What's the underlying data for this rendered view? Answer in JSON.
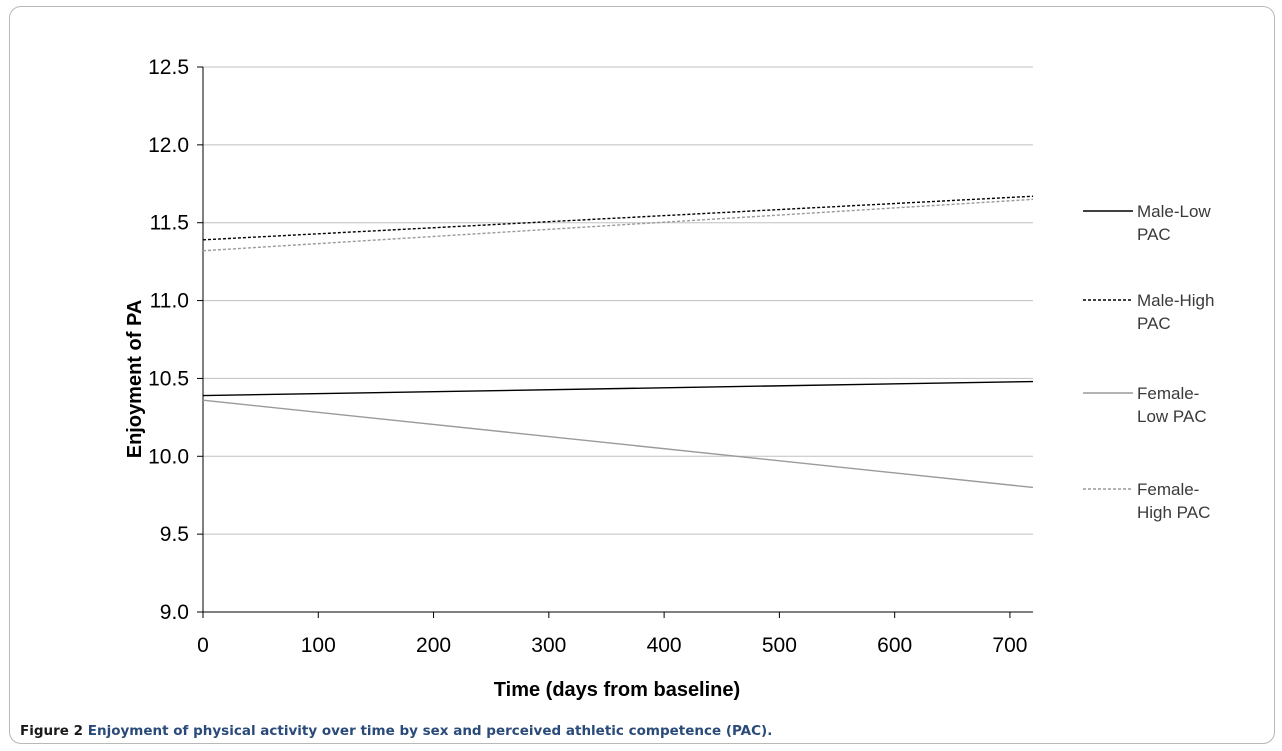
{
  "caption": {
    "number": "Figure 2",
    "text": "Enjoyment of physical activity over time by sex and perceived athletic competence (PAC)."
  },
  "chart_data": {
    "type": "line",
    "title": "",
    "xlabel": "Time (days from baseline)",
    "ylabel": "Enjoyment of PA",
    "xlim": [
      0,
      720
    ],
    "ylim": [
      9.0,
      12.5
    ],
    "xticks": [
      0,
      100,
      200,
      300,
      400,
      500,
      600,
      700
    ],
    "yticks": [
      9.0,
      9.5,
      10.0,
      10.5,
      11.0,
      11.5,
      12.0,
      12.5
    ],
    "xtick_labels": [
      "0",
      "100",
      "200",
      "300",
      "400",
      "500",
      "600",
      "700"
    ],
    "ytick_labels": [
      "9.0",
      "9.5",
      "10.0",
      "10.5",
      "11.0",
      "11.5",
      "12.0",
      "12.5"
    ],
    "grid": "horizontal",
    "legend_position": "right",
    "series": [
      {
        "name": "Male-Low PAC",
        "legend_lines": [
          "Male-Low",
          "PAC"
        ],
        "color": "#000000",
        "dash": "solid",
        "x": [
          0,
          720
        ],
        "y": [
          10.39,
          10.48
        ]
      },
      {
        "name": "Male-High PAC",
        "legend_lines": [
          "Male-High",
          "PAC"
        ],
        "color": "#000000",
        "dash": "dashed",
        "x": [
          0,
          720
        ],
        "y": [
          11.39,
          11.67
        ]
      },
      {
        "name": "Female-Low PAC",
        "legend_lines": [
          "Female-",
          "Low PAC"
        ],
        "color": "#9a9a9a",
        "dash": "solid",
        "x": [
          0,
          720
        ],
        "y": [
          10.36,
          9.8
        ]
      },
      {
        "name": "Female-High PAC",
        "legend_lines": [
          "Female-",
          "High PAC"
        ],
        "color": "#9a9a9a",
        "dash": "dashed",
        "x": [
          0,
          720
        ],
        "y": [
          11.32,
          11.65
        ]
      }
    ]
  }
}
